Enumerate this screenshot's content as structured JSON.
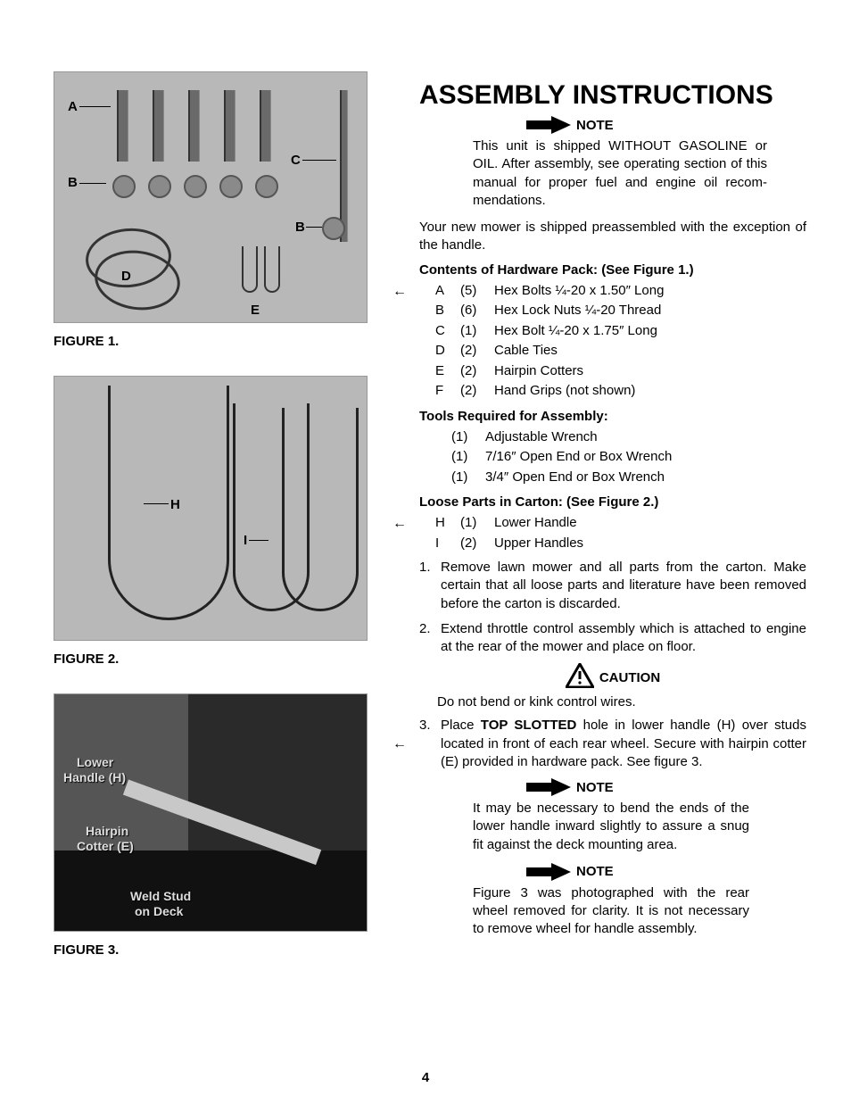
{
  "title": "ASSEMBLY INSTRUCTIONS",
  "note_label": "NOTE",
  "note1_body": "This unit is shipped WITHOUT GAS­OLINE or OIL. After assembly, see operating section of this manual for proper fuel and engine oil recom­mendations.",
  "intro": "Your new mower is shipped preassembled with the exception of the handle.",
  "contents_head": "Contents of Hardware Pack: (See Figure 1.)",
  "hardware": [
    {
      "label": "A",
      "qty": "(5)",
      "desc": "Hex Bolts ¼-20 x 1.50″ Long"
    },
    {
      "label": "B",
      "qty": "(6)",
      "desc": "Hex Lock Nuts ¼-20 Thread"
    },
    {
      "label": "C",
      "qty": "(1)",
      "desc": "Hex Bolt ¼-20 x 1.75″ Long"
    },
    {
      "label": "D",
      "qty": "(2)",
      "desc": "Cable Ties"
    },
    {
      "label": "E",
      "qty": "(2)",
      "desc": "Hairpin Cotters"
    },
    {
      "label": "F",
      "qty": "(2)",
      "desc": "Hand Grips (not shown)"
    }
  ],
  "tools_head": "Tools Required for Assembly:",
  "tools": [
    {
      "qty": "(1)",
      "desc": "Adjustable Wrench"
    },
    {
      "qty": "(1)",
      "desc": "7/16″ Open End or Box Wrench"
    },
    {
      "qty": "(1)",
      "desc": "3/4″ Open End or Box Wrench"
    }
  ],
  "loose_head": "Loose Parts in Carton: (See Figure 2.)",
  "loose": [
    {
      "label": "H",
      "qty": "(1)",
      "desc": "Lower Handle"
    },
    {
      "label": "I",
      "qty": "(2)",
      "desc": "Upper Handles"
    }
  ],
  "steps": [
    {
      "num": "1.",
      "text": "Remove lawn mower and all parts from the carton. Make certain that all loose parts and literature have been removed before the car­ton is discarded."
    },
    {
      "num": "2.",
      "text": "Extend throttle control assembly which is at­tached to engine at the rear of the mower and place on floor."
    }
  ],
  "caution_label": "CAUTION",
  "caution_body": "Do not bend or kink control wires.",
  "step3": {
    "num": "3.",
    "prefix": "Place ",
    "bold": "TOP SLOTTED",
    "rest": " hole in lower handle (H) over studs located in front of each rear wheel. Secure with hairpin cotter (E) provided in hard­ware pack. See figure 3."
  },
  "note2_body": "It may be necessary to bend the ends of the lower handle inward slightly to assure a snug fit against the deck mounting area.",
  "note3_body": "Figure 3 was photographed with the rear wheel removed for clarity. It is not necessary to remove wheel for handle assembly.",
  "fig1_caption": "FIGURE 1.",
  "fig2_caption": "FIGURE 2.",
  "fig3_caption": "FIGURE 3.",
  "fig1_labels": {
    "A": "A",
    "B": "B",
    "C": "C",
    "D": "D",
    "E": "E"
  },
  "fig2_labels": {
    "H": "H",
    "I": "I"
  },
  "fig3_labels": {
    "lower": "Lower",
    "handle": "Handle (H)",
    "hairpin": "Hairpin",
    "cotter": "Cotter (E)",
    "weld": "Weld Stud",
    "deck": "on Deck"
  },
  "page_number": "4",
  "colors": {
    "text": "#000000",
    "bg": "#ffffff",
    "fig_bg": "#b8b8b8",
    "fig3_bg": "#555555"
  }
}
